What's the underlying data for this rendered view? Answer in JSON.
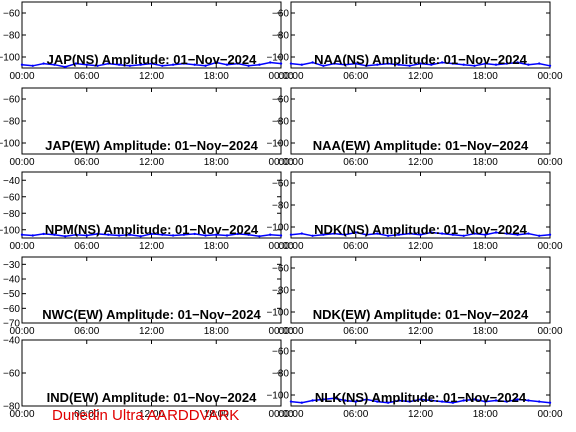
{
  "footer_text": "Dunedin Ultra AARDDVARK",
  "colors": {
    "trace": "#0000ff",
    "footer": "#e00000",
    "axes": "#000000"
  },
  "chart_data": [
    {
      "type": "line",
      "title": "JAP(NS) Amplitude: 01-Nov-2024",
      "ylim": [
        -110,
        -50
      ],
      "yticks": [
        -60,
        -80,
        -100
      ],
      "xticks": [
        "00:00",
        "06:00",
        "12:00",
        "18:00",
        "00:00"
      ],
      "xlim": [
        0,
        24
      ],
      "series": [
        {
          "x": [
            0,
            1,
            2,
            3,
            4,
            5,
            6,
            7,
            8,
            9,
            10,
            11,
            12,
            13,
            14,
            15,
            16,
            17,
            18,
            19,
            20,
            21,
            22,
            23,
            24
          ],
          "values": [
            -107,
            -108,
            -106,
            -107,
            -109,
            -106,
            -107,
            -108,
            -106,
            -107,
            -108,
            -107,
            -106,
            -108,
            -107,
            -106,
            -107,
            -108,
            -105,
            -107,
            -106,
            -108,
            -107,
            -105,
            -106
          ]
        }
      ]
    },
    {
      "type": "line",
      "title": "NAA(NS) Amplitude: 01-Nov-2024",
      "ylim": [
        -110,
        -50
      ],
      "yticks": [
        -60,
        -80,
        -100
      ],
      "xticks": [
        "00:00",
        "06:00",
        "12:00",
        "18:00",
        "00:00"
      ],
      "xlim": [
        0,
        24
      ],
      "series": [
        {
          "x": [
            0,
            1,
            2,
            3,
            4,
            5,
            6,
            7,
            8,
            9,
            10,
            11,
            12,
            13,
            14,
            15,
            16,
            17,
            18,
            19,
            20,
            21,
            22,
            23,
            24
          ],
          "values": [
            -106,
            -107,
            -105,
            -108,
            -106,
            -107,
            -106,
            -108,
            -107,
            -106,
            -107,
            -108,
            -106,
            -107,
            -105,
            -106,
            -107,
            -108,
            -106,
            -107,
            -106,
            -105,
            -107,
            -106,
            -108
          ]
        }
      ]
    },
    {
      "type": "line",
      "title": "JAP(EW) Amplitude: 01-Nov-2024",
      "ylim": [
        -110,
        -50
      ],
      "yticks": [
        -60,
        -80,
        -100
      ],
      "xticks": [
        "00:00",
        "06:00",
        "12:00",
        "18:00",
        "00:00"
      ],
      "xlim": [
        0,
        24
      ],
      "series": []
    },
    {
      "type": "line",
      "title": "NAA(EW) Amplitude: 01-Nov-2024",
      "ylim": [
        -110,
        -50
      ],
      "yticks": [
        -60,
        -80,
        -100
      ],
      "xticks": [
        "00:00",
        "06:00",
        "12:00",
        "18:00",
        "00:00"
      ],
      "xlim": [
        0,
        24
      ],
      "series": []
    },
    {
      "type": "line",
      "title": "NPM(NS) Amplitude: 01-Nov-2024",
      "ylim": [
        -110,
        -30
      ],
      "yticks": [
        -40,
        -60,
        -80,
        -100
      ],
      "xticks": [
        "00:00",
        "06:00",
        "12:00",
        "18:00",
        "00:00"
      ],
      "xlim": [
        0,
        24
      ],
      "series": [
        {
          "x": [
            0,
            1,
            2,
            3,
            4,
            5,
            6,
            7,
            8,
            9,
            10,
            11,
            12,
            13,
            14,
            15,
            16,
            17,
            18,
            19,
            20,
            21,
            22,
            23,
            24
          ],
          "values": [
            -106,
            -107,
            -105,
            -106,
            -108,
            -106,
            -107,
            -105,
            -106,
            -107,
            -106,
            -108,
            -105,
            -106,
            -107,
            -106,
            -105,
            -107,
            -106,
            -107,
            -105,
            -106,
            -108,
            -106,
            -107
          ]
        }
      ]
    },
    {
      "type": "line",
      "title": "NDK(NS) Amplitude: 01-Nov-2024",
      "ylim": [
        -110,
        -50
      ],
      "yticks": [
        -60,
        -80,
        -100
      ],
      "xticks": [
        "00:00",
        "06:00",
        "12:00",
        "18:00",
        "00:00"
      ],
      "xlim": [
        0,
        24
      ],
      "series": [
        {
          "x": [
            0,
            1,
            2,
            3,
            4,
            5,
            6,
            7,
            8,
            9,
            10,
            11,
            12,
            13,
            14,
            15,
            16,
            17,
            18,
            19,
            20,
            21,
            22,
            23,
            24
          ],
          "values": [
            -107,
            -106,
            -108,
            -107,
            -106,
            -107,
            -105,
            -107,
            -106,
            -108,
            -107,
            -106,
            -107,
            -105,
            -106,
            -107,
            -108,
            -106,
            -107,
            -105,
            -106,
            -107,
            -106,
            -108,
            -107
          ]
        }
      ]
    },
    {
      "type": "line",
      "title": "NWC(EW) Amplitude: 01-Nov-2024",
      "ylim": [
        -70,
        -25
      ],
      "yticks": [
        -30,
        -40,
        -50,
        -60,
        -70
      ],
      "xticks": [
        "00:00",
        "06:00",
        "12:00",
        "18:00",
        "00:00"
      ],
      "xlim": [
        0,
        24
      ],
      "series": []
    },
    {
      "type": "line",
      "title": "NDK(EW) Amplitude: 01-Nov-2024",
      "ylim": [
        -110,
        -50
      ],
      "yticks": [
        -60,
        -80,
        -100
      ],
      "xticks": [
        "00:00",
        "06:00",
        "12:00",
        "18:00",
        "00:00"
      ],
      "xlim": [
        0,
        24
      ],
      "series": []
    },
    {
      "type": "line",
      "title": "IND(EW) Amplitude: 01-Nov-2024",
      "ylim": [
        -80,
        -40
      ],
      "yticks": [
        -40,
        -60,
        -80
      ],
      "xticks": [
        "00:00",
        "06:00",
        "12:00",
        "18:00",
        "00:00"
      ],
      "xlim": [
        0,
        24
      ],
      "series": []
    },
    {
      "type": "line",
      "title": "NLK(NS) Amplitude: 01-Nov-2024",
      "ylim": [
        -110,
        -50
      ],
      "yticks": [
        -60,
        -80,
        -100
      ],
      "xticks": [
        "00:00",
        "06:00",
        "12:00",
        "18:00",
        "00:00"
      ],
      "xlim": [
        0,
        24
      ],
      "series": [
        {
          "x": [
            0,
            1,
            2,
            3,
            4,
            5,
            6,
            7,
            8,
            9,
            10,
            11,
            12,
            13,
            14,
            15,
            16,
            17,
            18,
            19,
            20,
            21,
            22,
            23,
            24
          ],
          "values": [
            -106,
            -107,
            -105,
            -104,
            -103,
            -105,
            -106,
            -104,
            -106,
            -107,
            -105,
            -106,
            -104,
            -105,
            -106,
            -107,
            -105,
            -104,
            -106,
            -105,
            -106,
            -104,
            -105,
            -106,
            -107
          ]
        }
      ]
    }
  ]
}
